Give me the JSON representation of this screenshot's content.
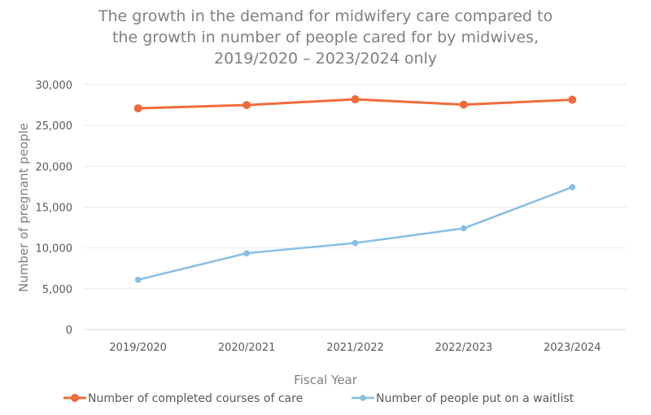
{
  "chart_data": {
    "type": "line",
    "title": [
      "The growth in the demand for midwifery care compared to",
      "the growth in number of people cared for by midwives,",
      "2019/2020 – 2023/2024 only"
    ],
    "xlabel": "Fiscal Year",
    "ylabel": "Number of pregnant people",
    "categories": [
      "2019/2020",
      "2020/2021",
      "2021/2022",
      "2022/2023",
      "2023/2024"
    ],
    "ylim": [
      0,
      30000
    ],
    "yticks": [
      0,
      5000,
      10000,
      15000,
      20000,
      25000,
      30000
    ],
    "ytick_labels": [
      "0",
      "5,000",
      "10,000",
      "15,000",
      "20,000",
      "25,000",
      "30,000"
    ],
    "grid": true,
    "legend_position": "bottom",
    "series": [
      {
        "name": "Number of completed courses of care",
        "color": "#ee6c3c",
        "values": [
          27100,
          27500,
          28200,
          27550,
          28150
        ]
      },
      {
        "name": "Number of people put on a waitlist",
        "color": "#86bfe6",
        "values": [
          6100,
          9350,
          10600,
          12400,
          17450
        ]
      }
    ]
  }
}
